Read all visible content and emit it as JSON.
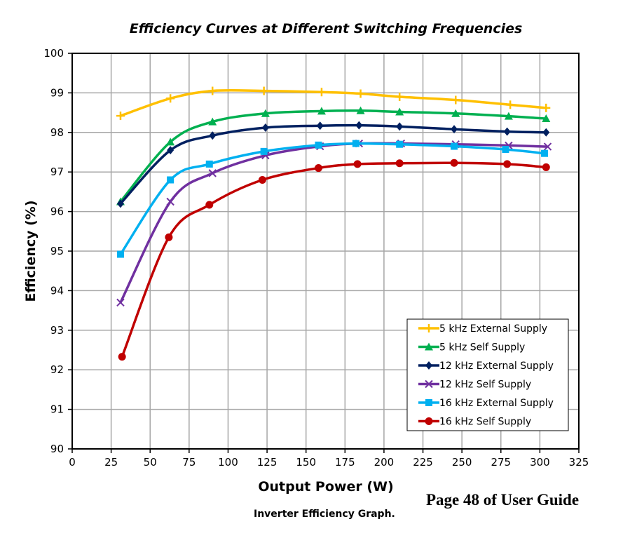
{
  "chart_data": {
    "type": "line",
    "title": "Efficiency Curves at Different Switching Frequencies",
    "xlabel": "Output Power (W)",
    "ylabel": "Efficiency (%)",
    "xlim": [
      0,
      325
    ],
    "ylim": [
      90,
      100
    ],
    "x_ticks": [
      0,
      25,
      50,
      75,
      100,
      125,
      150,
      175,
      200,
      225,
      250,
      275,
      300,
      325
    ],
    "y_ticks": [
      90,
      91,
      92,
      93,
      94,
      95,
      96,
      97,
      98,
      99,
      100
    ],
    "grid": true,
    "legend_position": "bottom-right",
    "series": [
      {
        "name": "5 kHz External Supply",
        "color": "#ffc000",
        "marker": "plus",
        "x": [
          31,
          63,
          90,
          123,
          160,
          185,
          210,
          246,
          281,
          304
        ],
        "y": [
          98.42,
          98.86,
          99.05,
          99.05,
          99.02,
          98.98,
          98.9,
          98.82,
          98.7,
          98.62
        ]
      },
      {
        "name": "5 kHz Self Supply",
        "color": "#00b050",
        "marker": "triangle",
        "x": [
          31,
          63,
          90,
          124,
          160,
          185,
          210,
          246,
          280,
          304
        ],
        "y": [
          96.25,
          97.76,
          98.27,
          98.48,
          98.54,
          98.55,
          98.52,
          98.48,
          98.41,
          98.35
        ]
      },
      {
        "name": "12 kHz External Supply",
        "color": "#002060",
        "marker": "diamond",
        "x": [
          31,
          63,
          90,
          124,
          159,
          184,
          210,
          245,
          279,
          304
        ],
        "y": [
          96.2,
          97.55,
          97.92,
          98.12,
          98.17,
          98.18,
          98.15,
          98.08,
          98.02,
          98.0
        ]
      },
      {
        "name": "12 kHz Self Supply",
        "color": "#7030a0",
        "marker": "x",
        "x": [
          31,
          63,
          90,
          124,
          159,
          184,
          211,
          246,
          280,
          305
        ],
        "y": [
          93.7,
          96.25,
          96.97,
          97.42,
          97.65,
          97.72,
          97.72,
          97.7,
          97.67,
          97.64
        ]
      },
      {
        "name": "16 kHz External Supply",
        "color": "#00b0f0",
        "marker": "square",
        "x": [
          31,
          63,
          88,
          123,
          158,
          182,
          210,
          245,
          278,
          303
        ],
        "y": [
          94.92,
          96.8,
          97.2,
          97.52,
          97.68,
          97.72,
          97.7,
          97.65,
          97.57,
          97.47
        ]
      },
      {
        "name": "16 kHz Self Supply",
        "color": "#c00000",
        "marker": "circle",
        "x": [
          32,
          62,
          88,
          122,
          158,
          183,
          210,
          245,
          279,
          304
        ],
        "y": [
          92.33,
          95.35,
          96.17,
          96.8,
          97.1,
          97.2,
          97.22,
          97.23,
          97.2,
          97.12
        ]
      }
    ]
  },
  "annotations": {
    "page_note": "Page 48 of User Guide",
    "caption": "Inverter Efficiency Graph."
  }
}
